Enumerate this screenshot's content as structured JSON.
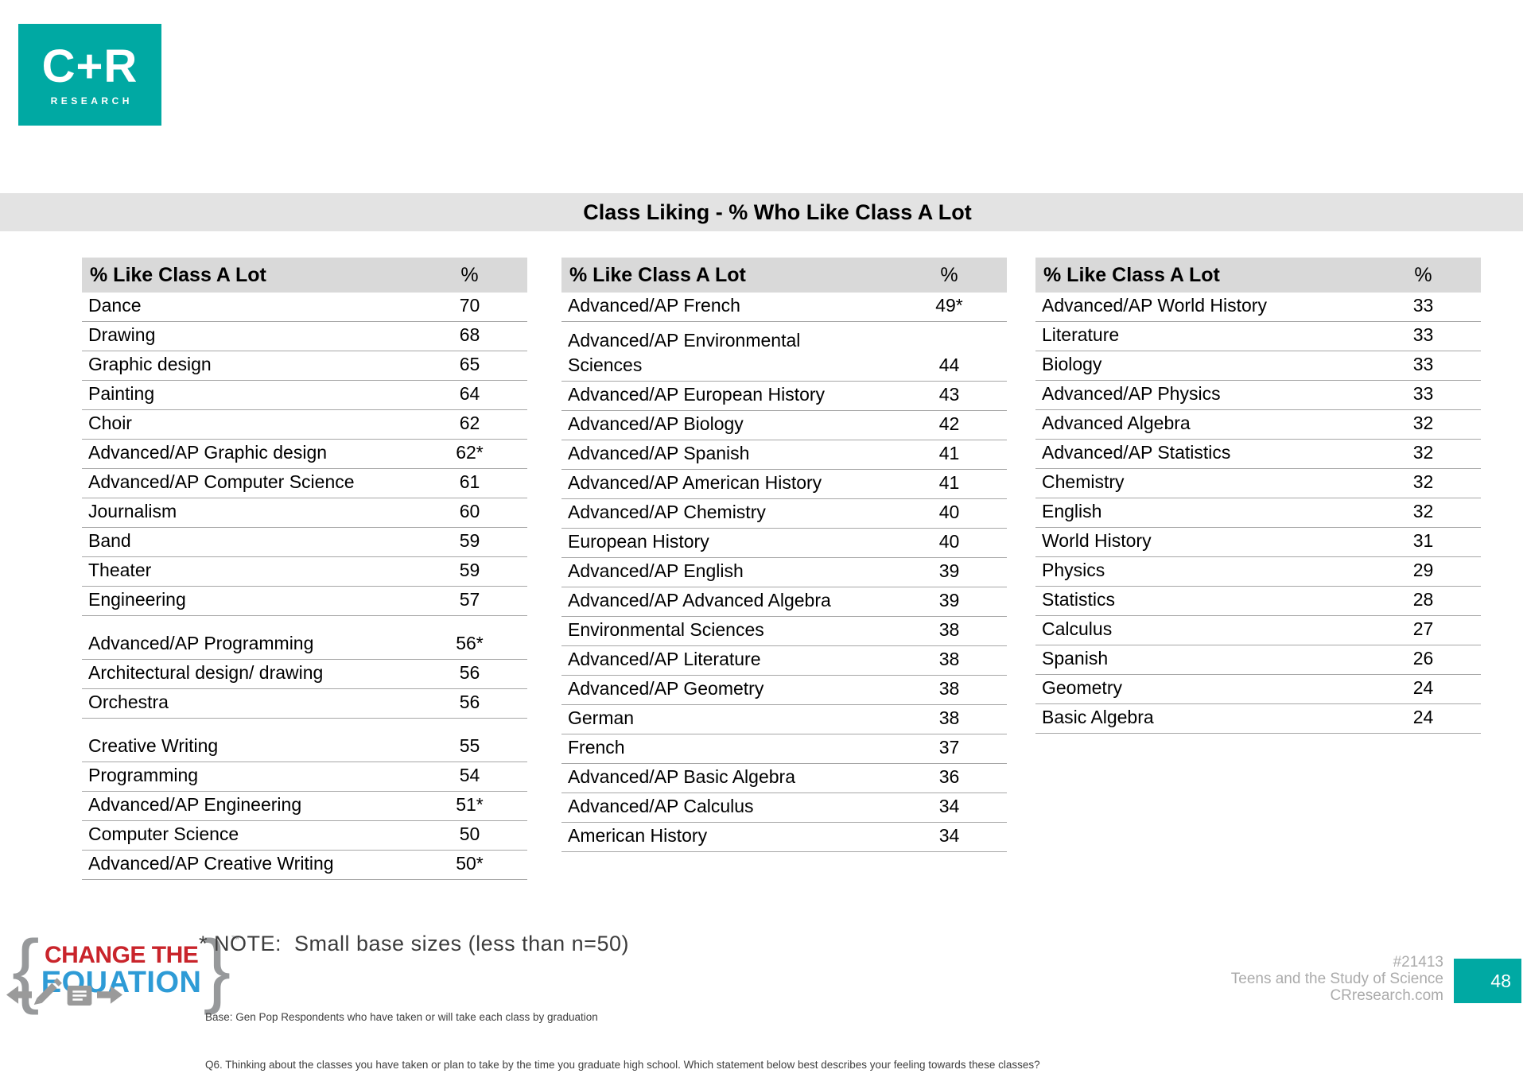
{
  "colors": {
    "teal": "#00A9A3",
    "band_gray": "#E3E3E3",
    "header_gray": "#D9D9D9",
    "rule_gray": "#A6A6A6",
    "cte_red": "#C9242B",
    "cte_blue": "#2E9BD6",
    "brace_gray": "#97999B",
    "footer_gray": "#ABABAB"
  },
  "brand": {
    "logo_line1": "C+R",
    "logo_line2": "RESEARCH"
  },
  "title": "Class Liking - % Who Like Class A Lot",
  "tables": [
    {
      "header": {
        "label": "% Like Class A Lot",
        "pct": "%"
      },
      "rows": [
        {
          "label": "Dance",
          "value": "70"
        },
        {
          "label": "Drawing",
          "value": "68"
        },
        {
          "label": "Graphic design",
          "value": "65"
        },
        {
          "label": "Painting",
          "value": "64"
        },
        {
          "label": "Choir",
          "value": "62"
        },
        {
          "label": "Advanced/AP Graphic design",
          "value": "62*"
        },
        {
          "label": "Advanced/AP Computer Science",
          "value": "61"
        },
        {
          "label": "Journalism",
          "value": "60"
        },
        {
          "label": "Band",
          "value": "59"
        },
        {
          "label": "Theater",
          "value": "59"
        },
        {
          "label": "Engineering",
          "value": "57"
        },
        {
          "label": "Advanced/AP Programming",
          "value": "56*",
          "tall": true
        },
        {
          "label": "Architectural design/ drawing",
          "value": "56"
        },
        {
          "label": "Orchestra",
          "value": "56"
        },
        {
          "label": "Creative Writing",
          "value": "55",
          "tall": true
        },
        {
          "label": "Programming",
          "value": "54"
        },
        {
          "label": "Advanced/AP Engineering",
          "value": "51*"
        },
        {
          "label": "Computer Science",
          "value": "50"
        },
        {
          "label": "Advanced/AP Creative Writing",
          "value": "50*"
        }
      ]
    },
    {
      "header": {
        "label": "% Like Class A Lot",
        "pct": "%"
      },
      "rows": [
        {
          "label": "Advanced/AP French",
          "value": "49*"
        },
        {
          "label": "Advanced/AP Environmental\nSciences",
          "value": "44",
          "wrap": true
        },
        {
          "label": "Advanced/AP European History",
          "value": "43"
        },
        {
          "label": "Advanced/AP Biology",
          "value": "42"
        },
        {
          "label": "Advanced/AP Spanish",
          "value": "41"
        },
        {
          "label": "Advanced/AP American History",
          "value": "41"
        },
        {
          "label": "Advanced/AP Chemistry",
          "value": "40"
        },
        {
          "label": "European History",
          "value": "40"
        },
        {
          "label": "Advanced/AP English",
          "value": "39"
        },
        {
          "label": "Advanced/AP Advanced Algebra",
          "value": "39"
        },
        {
          "label": "Environmental Sciences",
          "value": "38"
        },
        {
          "label": "Advanced/AP Literature",
          "value": "38"
        },
        {
          "label": "Advanced/AP Geometry",
          "value": "38"
        },
        {
          "label": "German",
          "value": "38"
        },
        {
          "label": "French",
          "value": "37"
        },
        {
          "label": "Advanced/AP Basic Algebra",
          "value": "36"
        },
        {
          "label": "Advanced/AP Calculus",
          "value": "34"
        },
        {
          "label": "American History",
          "value": "34"
        }
      ]
    },
    {
      "header": {
        "label": "% Like Class A Lot",
        "pct": "%"
      },
      "rows": [
        {
          "label": "Advanced/AP World History",
          "value": "33"
        },
        {
          "label": "Literature",
          "value": "33"
        },
        {
          "label": "Biology",
          "value": "33"
        },
        {
          "label": "Advanced/AP Physics",
          "value": "33"
        },
        {
          "label": "Advanced Algebra",
          "value": "32"
        },
        {
          "label": "Advanced/AP Statistics",
          "value": "32"
        },
        {
          "label": "Chemistry",
          "value": "32"
        },
        {
          "label": "English",
          "value": "32"
        },
        {
          "label": "World History",
          "value": "31"
        },
        {
          "label": "Physics",
          "value": "29"
        },
        {
          "label": "Statistics",
          "value": "28"
        },
        {
          "label": "Calculus",
          "value": "27"
        },
        {
          "label": "Spanish",
          "value": "26"
        },
        {
          "label": "Geometry",
          "value": "24"
        },
        {
          "label": "Basic Algebra",
          "value": "24"
        }
      ]
    }
  ],
  "note": "* NOTE:  Small base sizes (less than n=50)",
  "cte_logo": {
    "brace_left": "{",
    "line1": "CHANGE THE",
    "line2": "EQUATION",
    "brace_right": "}",
    "tm": "™"
  },
  "footer": {
    "base": "Base: Gen Pop Respondents who have taken or will take each class by graduation",
    "q6": "Q6. Thinking about the classes you have taken or plan to take by the time you graduate high school. Which statement below best describes your feeling towards these classes?",
    "project": "#21413",
    "study": "Teens and the Study of Science",
    "site": "CRresearch.com",
    "page": "48"
  }
}
